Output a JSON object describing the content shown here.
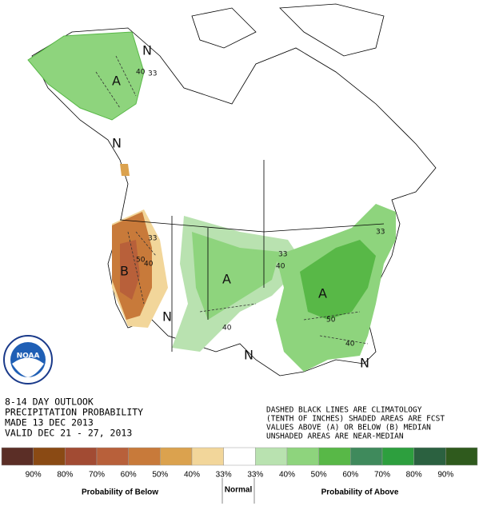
{
  "logo": "NOAA",
  "outlook": [
    "8-14 DAY OUTLOOK",
    "PRECIPITATION PROBABILITY",
    "MADE  13 DEC 2013",
    "VALID  DEC 21 - 27, 2013"
  ],
  "notes": [
    "DASHED BLACK LINES ARE CLIMATOLOGY",
    "(TENTH OF INCHES) SHADED AREAS ARE FCST",
    "VALUES ABOVE (A) OR BELOW (B) MEDIAN",
    "UNSHADED AREAS ARE NEAR-MEDIAN"
  ],
  "map_labels": {
    "alaska": [
      "A",
      "N",
      "40",
      "33"
    ],
    "west": [
      "N",
      "B",
      "33",
      "40",
      "50"
    ],
    "central": [
      "A",
      "N",
      "40",
      "33"
    ],
    "east": [
      "A",
      "40",
      "50",
      "40",
      "N",
      "N",
      "33"
    ]
  },
  "legend": {
    "colors": [
      "#5b2e26",
      "#8a4a14",
      "#a24b33",
      "#b8603a",
      "#c87a3a",
      "#dba24e",
      "#f2d69a",
      "#ffffff",
      "#b9e2b0",
      "#8ed47d",
      "#58b847",
      "#3f8a5c",
      "#2d9f3e",
      "#2b6140",
      "#2f5a1d"
    ],
    "labels": [
      "90%",
      "80%",
      "70%",
      "60%",
      "50%",
      "40%",
      "33%",
      "33%",
      "40%",
      "50%",
      "60%",
      "70%",
      "80%",
      "90%"
    ],
    "below": "Probability of Below",
    "normal": "Normal",
    "above": "Probability of Above"
  }
}
